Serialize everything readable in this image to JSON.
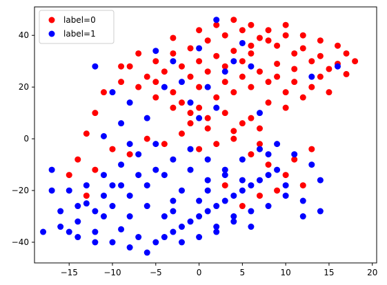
{
  "chart_data": {
    "type": "scatter",
    "xlim": [
      -19,
      20.5
    ],
    "ylim": [
      -48,
      51
    ],
    "xticks": [
      -15,
      -10,
      -5,
      0,
      5,
      10,
      15,
      20
    ],
    "yticks": [
      -40,
      -20,
      0,
      20,
      40
    ],
    "grid": false,
    "legend_position": "top-left",
    "series": [
      {
        "name": "label=0",
        "color": "#ff0000",
        "points": [
          [
            -8,
            28
          ],
          [
            -5,
            30
          ],
          [
            -3,
            33
          ],
          [
            -1,
            35
          ],
          [
            1,
            38
          ],
          [
            3,
            40
          ],
          [
            5,
            42
          ],
          [
            7,
            39
          ],
          [
            9,
            36
          ],
          [
            11,
            33
          ],
          [
            13,
            30
          ],
          [
            15,
            27
          ],
          [
            17,
            25
          ],
          [
            -6,
            24
          ],
          [
            -4,
            26
          ],
          [
            -2,
            28
          ],
          [
            0,
            30
          ],
          [
            2,
            32
          ],
          [
            4,
            34
          ],
          [
            6,
            36
          ],
          [
            8,
            38
          ],
          [
            10,
            40
          ],
          [
            12,
            35
          ],
          [
            14,
            32
          ],
          [
            16,
            29
          ],
          [
            -7,
            20
          ],
          [
            -5,
            22
          ],
          [
            -3,
            18
          ],
          [
            -1,
            24
          ],
          [
            1,
            26
          ],
          [
            3,
            28
          ],
          [
            5,
            30
          ],
          [
            7,
            26
          ],
          [
            9,
            24
          ],
          [
            11,
            22
          ],
          [
            13,
            20
          ],
          [
            15,
            18
          ],
          [
            -2,
            14
          ],
          [
            0,
            12
          ],
          [
            2,
            16
          ],
          [
            4,
            18
          ],
          [
            6,
            20
          ],
          [
            8,
            22
          ],
          [
            10,
            18
          ],
          [
            12,
            16
          ],
          [
            1,
            8
          ],
          [
            3,
            10
          ],
          [
            5,
            6
          ],
          [
            7,
            4
          ],
          [
            -1,
            6
          ],
          [
            2,
            44
          ],
          [
            4,
            46
          ],
          [
            6,
            44
          ],
          [
            8,
            42
          ],
          [
            10,
            44
          ],
          [
            12,
            40
          ],
          [
            14,
            38
          ],
          [
            16,
            36
          ],
          [
            18,
            30
          ],
          [
            -9,
            22
          ],
          [
            -11,
            18
          ],
          [
            -12,
            10
          ],
          [
            -13,
            2
          ],
          [
            -14,
            -8
          ],
          [
            -12,
            -12
          ],
          [
            -10,
            -4
          ],
          [
            -8,
            -6
          ],
          [
            -6,
            0
          ],
          [
            -4,
            -2
          ],
          [
            -2,
            2
          ],
          [
            0,
            -4
          ],
          [
            2,
            -2
          ],
          [
            4,
            0
          ],
          [
            6,
            -6
          ],
          [
            8,
            -10
          ],
          [
            10,
            -14
          ],
          [
            12,
            -18
          ],
          [
            7,
            -22
          ],
          [
            5,
            -26
          ],
          [
            9,
            -20
          ],
          [
            3,
            -18
          ],
          [
            11,
            -8
          ],
          [
            13,
            -4
          ],
          [
            -9,
            28
          ],
          [
            -7,
            33
          ],
          [
            -3,
            39
          ],
          [
            0,
            42
          ],
          [
            6,
            33
          ],
          [
            9,
            29
          ],
          [
            11,
            27
          ],
          [
            14,
            24
          ],
          [
            17,
            33
          ],
          [
            -5,
            16
          ],
          [
            -3,
            12
          ],
          [
            0,
            20
          ],
          [
            3,
            22
          ],
          [
            5,
            24
          ],
          [
            8,
            14
          ],
          [
            10,
            12
          ],
          [
            -15,
            -14
          ],
          [
            -13,
            -22
          ],
          [
            -1,
            10
          ],
          [
            1,
            4
          ],
          [
            4,
            3
          ],
          [
            6,
            8
          ],
          [
            7,
            -2
          ]
        ]
      },
      {
        "name": "label=1",
        "color": "#0000ff",
        "points": [
          [
            -15,
            -20
          ],
          [
            -13,
            -25
          ],
          [
            -11,
            -30
          ],
          [
            -9,
            -35
          ],
          [
            -7,
            -38
          ],
          [
            -5,
            -40
          ],
          [
            -3,
            -36
          ],
          [
            -1,
            -32
          ],
          [
            1,
            -28
          ],
          [
            3,
            -24
          ],
          [
            5,
            -20
          ],
          [
            7,
            -16
          ],
          [
            9,
            -12
          ],
          [
            -14,
            -32
          ],
          [
            -12,
            -36
          ],
          [
            -10,
            -40
          ],
          [
            -8,
            -42
          ],
          [
            -6,
            -44
          ],
          [
            -4,
            -38
          ],
          [
            -2,
            -34
          ],
          [
            0,
            -30
          ],
          [
            2,
            -26
          ],
          [
            4,
            -22
          ],
          [
            6,
            -18
          ],
          [
            8,
            -14
          ],
          [
            -16,
            -28
          ],
          [
            -13,
            -18
          ],
          [
            -11,
            -14
          ],
          [
            -9,
            -10
          ],
          [
            -7,
            -6
          ],
          [
            -5,
            -2
          ],
          [
            -3,
            -8
          ],
          [
            -1,
            -12
          ],
          [
            1,
            -16
          ],
          [
            3,
            -12
          ],
          [
            5,
            -8
          ],
          [
            7,
            -4
          ],
          [
            9,
            -2
          ],
          [
            11,
            -6
          ],
          [
            13,
            -10
          ],
          [
            -17,
            -20
          ],
          [
            -15,
            -36
          ],
          [
            -12,
            -40
          ],
          [
            -10,
            -26
          ],
          [
            -8,
            -22
          ],
          [
            -6,
            -18
          ],
          [
            -4,
            -14
          ],
          [
            -2,
            -20
          ],
          [
            0,
            -24
          ],
          [
            2,
            -34
          ],
          [
            4,
            -30
          ],
          [
            6,
            -34
          ],
          [
            8,
            -26
          ],
          [
            10,
            -22
          ],
          [
            12,
            -30
          ],
          [
            14,
            -28
          ],
          [
            -18,
            -36
          ],
          [
            -16,
            -34
          ],
          [
            -14,
            -38
          ],
          [
            -12,
            -28
          ],
          [
            -10,
            -18
          ],
          [
            -8,
            -30
          ],
          [
            -6,
            -26
          ],
          [
            -4,
            -30
          ],
          [
            -2,
            -40
          ],
          [
            0,
            -38
          ],
          [
            2,
            -36
          ],
          [
            4,
            -32
          ],
          [
            6,
            -28
          ],
          [
            -3,
            -24
          ],
          [
            -5,
            -12
          ],
          [
            -7,
            -14
          ],
          [
            -9,
            -18
          ],
          [
            -11,
            -22
          ],
          [
            1,
            -20
          ],
          [
            3,
            -14
          ],
          [
            5,
            -16
          ],
          [
            -1,
            -4
          ],
          [
            1,
            -8
          ],
          [
            -3,
            -28
          ],
          [
            -12,
            28
          ],
          [
            -10,
            18
          ],
          [
            -5,
            34
          ],
          [
            -3,
            30
          ],
          [
            0,
            35
          ],
          [
            2,
            46
          ],
          [
            5,
            37
          ],
          [
            6,
            28
          ],
          [
            4,
            30
          ],
          [
            1,
            20
          ],
          [
            -1,
            14
          ],
          [
            0,
            8
          ],
          [
            2,
            12
          ],
          [
            -6,
            8
          ],
          [
            -8,
            14
          ],
          [
            -9,
            6
          ],
          [
            -11,
            1
          ],
          [
            16,
            28
          ],
          [
            13,
            24
          ],
          [
            7,
            10
          ],
          [
            -4,
            20
          ],
          [
            -2,
            22
          ],
          [
            3,
            26
          ],
          [
            8,
            -6
          ],
          [
            10,
            -18
          ],
          [
            12,
            -24
          ],
          [
            14,
            -16
          ],
          [
            -17,
            -12
          ],
          [
            -14,
            -26
          ],
          [
            -8,
            -2
          ]
        ]
      }
    ]
  }
}
